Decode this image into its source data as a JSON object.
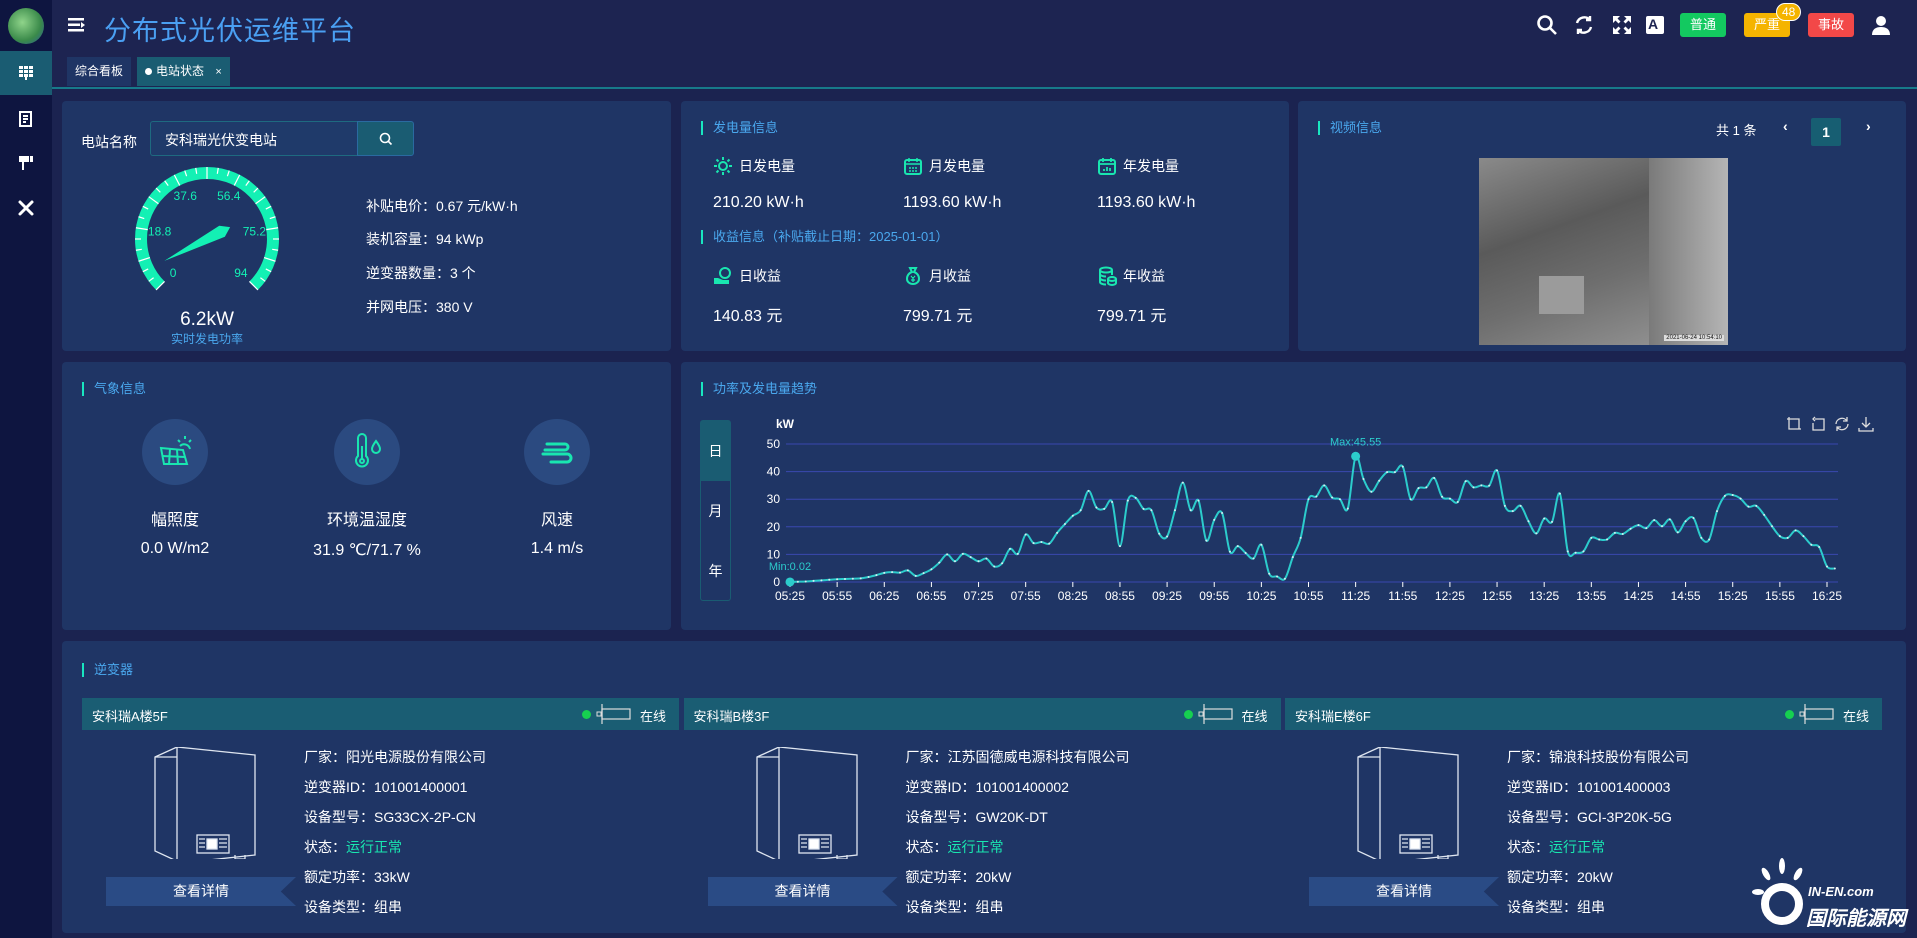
{
  "app": {
    "title": "分布式光伏运维平台"
  },
  "header": {
    "alerts": [
      {
        "label": "普通",
        "color": "#13c960"
      },
      {
        "label": "严重",
        "color": "#f5b400",
        "count": "48"
      },
      {
        "label": "事故",
        "color": "#f24848"
      }
    ]
  },
  "tabs": [
    {
      "label": "综合看板"
    },
    {
      "label": "电站状态",
      "close": "×"
    }
  ],
  "station": {
    "name_label": "电站名称",
    "name_value": "安科瑞光伏变电站",
    "gauge": {
      "min": 0,
      "max": 94,
      "value": 6.2,
      "ticks": [
        "0",
        "18.8",
        "37.6",
        "56.4",
        "75.2",
        "94"
      ],
      "value_text": "6.2kW",
      "caption": "实时发电功率"
    },
    "info": [
      {
        "label": "补贴电价：",
        "value": "0.67 元/kW·h"
      },
      {
        "label": "装机容量：",
        "value": "94 kWp"
      },
      {
        "label": "逆变器数量：",
        "value": "3 个"
      },
      {
        "label": "并网电压：",
        "value": "380 V"
      }
    ]
  },
  "generation": {
    "title": "发电量信息",
    "items": [
      {
        "label": "日发电量",
        "value": "210.20 kW·h",
        "icon": "sun-icon"
      },
      {
        "label": "月发电量",
        "value": "1193.60 kW·h",
        "icon": "calendar-icon"
      },
      {
        "label": "年发电量",
        "value": "1193.60 kW·h",
        "icon": "calendar-chart-icon"
      }
    ],
    "income_title": "收益信息（补贴截止日期：2025-01-01）",
    "income": [
      {
        "label": "日收益",
        "value": "140.83 元",
        "icon": "hand-coin-icon"
      },
      {
        "label": "月收益",
        "value": "799.71 元",
        "icon": "money-bag-icon"
      },
      {
        "label": "年收益",
        "value": "799.71 元",
        "icon": "coin-stack-icon"
      }
    ]
  },
  "video": {
    "title": "视频信息",
    "total": "共 1 条",
    "page": "1",
    "timestamp": "2021-06-24 10:54:10"
  },
  "weather": {
    "title": "气象信息",
    "items": [
      {
        "label": "幅照度",
        "value": "0.0 W/m2",
        "icon": "solar-panel-icon"
      },
      {
        "label": "环境温湿度",
        "value": "31.9 ℃/71.7 %",
        "icon": "thermometer-icon"
      },
      {
        "label": "风速",
        "value": "1.4 m/s",
        "icon": "wind-icon"
      }
    ]
  },
  "trend": {
    "title": "功率及发电量趋势",
    "periods": [
      "日",
      "月",
      "年"
    ],
    "active_period": "日"
  },
  "chart_data": {
    "type": "line",
    "ylabel": "kW",
    "ylim": [
      0,
      50
    ],
    "yticks": [
      0,
      10,
      20,
      30,
      40,
      50
    ],
    "grid": true,
    "x": [
      "05:25",
      "05:30",
      "05:35",
      "05:40",
      "05:45",
      "05:50",
      "05:55",
      "06:00",
      "06:05",
      "06:10",
      "06:15",
      "06:20",
      "06:25",
      "06:30",
      "06:35",
      "06:40",
      "06:45",
      "06:50",
      "06:55",
      "07:00",
      "07:05",
      "07:10",
      "07:15",
      "07:20",
      "07:25",
      "07:30",
      "07:35",
      "07:40",
      "07:45",
      "07:50",
      "07:55",
      "08:00",
      "08:05",
      "08:10",
      "08:15",
      "08:20",
      "08:25",
      "08:30",
      "08:35",
      "08:40",
      "08:45",
      "08:50",
      "08:55",
      "09:00",
      "09:05",
      "09:10",
      "09:15",
      "09:20",
      "09:25",
      "09:30",
      "09:35",
      "09:40",
      "09:45",
      "09:50",
      "09:55",
      "10:00",
      "10:05",
      "10:10",
      "10:15",
      "10:20",
      "10:25",
      "10:30",
      "10:35",
      "10:40",
      "10:45",
      "10:50",
      "10:55",
      "11:00",
      "11:05",
      "11:10",
      "11:15",
      "11:20",
      "11:25",
      "11:30",
      "11:35",
      "11:40",
      "11:45",
      "11:50",
      "11:55",
      "12:00",
      "12:05",
      "12:10",
      "12:15",
      "12:20",
      "12:25",
      "12:30",
      "12:35",
      "12:40",
      "12:45",
      "12:50",
      "12:55",
      "13:00",
      "13:05",
      "13:10",
      "13:15",
      "13:20",
      "13:25",
      "13:30",
      "13:35",
      "13:40",
      "13:45",
      "13:50",
      "13:55",
      "14:00",
      "14:05",
      "14:10",
      "14:15",
      "14:20",
      "14:25",
      "14:30",
      "14:35",
      "14:40",
      "14:45",
      "14:50",
      "14:55",
      "15:00",
      "15:05",
      "15:10",
      "15:15",
      "15:20",
      "15:25",
      "15:30",
      "15:35",
      "15:40",
      "15:45",
      "15:50",
      "15:55",
      "16:00",
      "16:05",
      "16:10",
      "16:15",
      "16:20",
      "16:25",
      "16:30"
    ],
    "values": [
      0.02,
      0.1,
      0.2,
      0.4,
      0.6,
      0.8,
      1.0,
      1.1,
      1.2,
      1.3,
      1.8,
      2.5,
      3.3,
      3.6,
      3.4,
      4.2,
      2.2,
      3.2,
      4.6,
      7,
      10,
      7.5,
      10.2,
      9,
      7.5,
      8.5,
      5.6,
      6.8,
      12,
      10.2,
      17.2,
      14.1,
      14.5,
      13.9,
      17.8,
      21,
      24,
      26,
      33,
      27,
      26.5,
      29,
      13,
      29.5,
      30.5,
      26.5,
      26,
      17.5,
      16.5,
      26,
      36,
      26,
      29.5,
      15,
      22.5,
      25,
      11,
      13,
      10.5,
      8.5,
      13.5,
      3,
      2,
      1.2,
      9,
      16,
      30,
      31,
      35,
      30.6,
      30,
      26.6,
      45.55,
      37.3,
      32.7,
      36.7,
      39.8,
      39.8,
      41.8,
      30,
      34,
      34.3,
      37.7,
      30.9,
      30.2,
      29,
      36.5,
      34.3,
      35,
      34.9,
      40.4,
      27.6,
      25.7,
      27.6,
      22,
      17.6,
      23,
      21.8,
      32,
      11.1,
      10.6,
      11.1,
      16,
      15.4,
      15.4,
      17.8,
      17.4,
      19.3,
      20.6,
      19.5,
      22.4,
      20.2,
      22.7,
      18,
      22,
      23.2,
      16,
      15.4,
      25.7,
      31.2,
      31.5,
      30.2,
      27.3,
      27.6,
      24.3,
      20.2,
      16.6,
      16,
      18.7,
      16.6,
      13.5,
      12.7,
      5.6,
      4.9
    ],
    "max_label": "Max:45.55",
    "min_label": "Min:0.02",
    "line_color": "#2ccccc"
  },
  "inverters": {
    "title": "逆变器",
    "detail_label": "查看详情",
    "status_online": "在线",
    "items": [
      {
        "name": "安科瑞A楼5F",
        "fields": [
          {
            "label": "厂家：",
            "value": "阳光电源股份有限公司"
          },
          {
            "label": "逆变器ID：",
            "value": "101001400001"
          },
          {
            "label": "设备型号：",
            "value": "SG33CX-2P-CN"
          },
          {
            "label": "状态：",
            "value": "运行正常",
            "status": true
          },
          {
            "label": "额定功率：",
            "value": "33kW"
          },
          {
            "label": "设备类型：",
            "value": "组串"
          }
        ]
      },
      {
        "name": "安科瑞B楼3F",
        "fields": [
          {
            "label": "厂家：",
            "value": "江苏固德威电源科技有限公司"
          },
          {
            "label": "逆变器ID：",
            "value": "101001400002"
          },
          {
            "label": "设备型号：",
            "value": "GW20K-DT"
          },
          {
            "label": "状态：",
            "value": "运行正常",
            "status": true
          },
          {
            "label": "额定功率：",
            "value": "20kW"
          },
          {
            "label": "设备类型：",
            "value": "组串"
          }
        ]
      },
      {
        "name": "安科瑞E楼6F",
        "fields": [
          {
            "label": "厂家：",
            "value": "锦浪科技股份有限公司"
          },
          {
            "label": "逆变器ID：",
            "value": "101001400003"
          },
          {
            "label": "设备型号：",
            "value": "GCI-3P20K-5G"
          },
          {
            "label": "状态：",
            "value": "运行正常",
            "status": true
          },
          {
            "label": "额定功率：",
            "value": "20kW"
          },
          {
            "label": "设备类型：",
            "value": "组串"
          }
        ]
      }
    ]
  },
  "watermark": {
    "line1": "IN-EN.com",
    "line2": "国际能源网"
  },
  "colors": {
    "accent": "#19e6b0",
    "status_ok": "#19e6b0",
    "online": "#16d050",
    "title": "#4a9ff2"
  }
}
